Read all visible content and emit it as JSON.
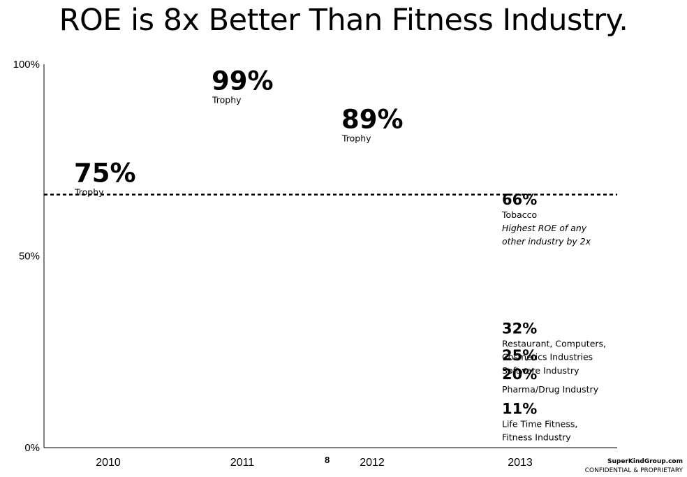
{
  "title": "ROE is 8x Better Than Fitness Industry.",
  "page_number": "8",
  "footer": {
    "site": "SuperKindGroup.com",
    "confidential": "CONFIDENTIAL & PROPRIETARY"
  },
  "chart_data": {
    "type": "scatter",
    "title": "ROE is 8x Better Than Fitness Industry.",
    "xlabel": "",
    "ylabel": "",
    "x_ticks": [
      "2010",
      "2011",
      "2012",
      "2013"
    ],
    "y_ticks": [
      "0%",
      "50%",
      "100%"
    ],
    "ylim": [
      0,
      100
    ],
    "grid": false,
    "points": [
      {
        "x": "2010",
        "value": 75,
        "label": "75%",
        "sub": "Trophy"
      },
      {
        "x": "2011",
        "value": 99,
        "label": "99%",
        "sub": "Trophy"
      },
      {
        "x": "2012",
        "value": 89,
        "label": "89%",
        "sub": "Trophy"
      }
    ],
    "reference_line": {
      "value": 66,
      "style": "dashed"
    },
    "benchmarks": [
      {
        "value": 66,
        "label": "66%",
        "lines": [
          "Tobacco"
        ],
        "note": [
          "Highest ROE of any",
          "other industry by 2x"
        ]
      },
      {
        "value": 32,
        "label": "32%",
        "lines": [
          "Restaurant, Computers,",
          "Cosmetics Industries"
        ],
        "note": []
      },
      {
        "value": 25,
        "label": "25%",
        "lines": [
          "Software Industry"
        ],
        "note": []
      },
      {
        "value": 20,
        "label": "20%",
        "lines": [
          "Pharma/Drug Industry"
        ],
        "note": []
      },
      {
        "value": 11,
        "label": "11%",
        "lines": [
          "Life Time Fitness,",
          "Fitness Industry"
        ],
        "note": []
      }
    ]
  }
}
